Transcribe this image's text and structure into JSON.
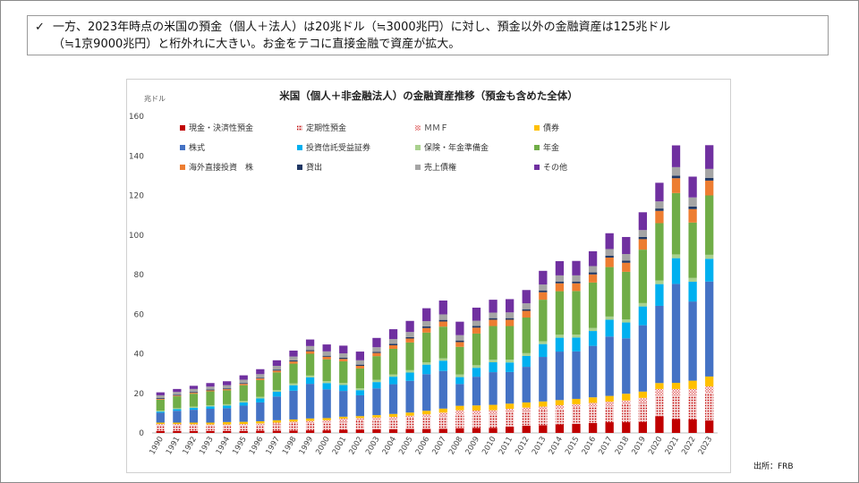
{
  "callout": {
    "check": "✓",
    "line1": "一方、2023年時点の米国の預金（個人＋法人）は20兆ドル（≒3000兆円）に対し、預金以外の金融資産は125兆ドル",
    "line2": "（≒1京9000兆円）と桁外れに大きい。お金をテコに直接金融で資産が拡大。"
  },
  "source": "出所：FRB",
  "chart_data": {
    "type": "bar",
    "stacked": true,
    "title": "米国（個人＋非金融法人）の金融資産推移（預金も含めた全体）",
    "ylabel": "兆ドル",
    "xlabel": "",
    "ylim": [
      0,
      160
    ],
    "yticks": [
      0,
      20,
      40,
      60,
      80,
      100,
      120,
      140,
      160
    ],
    "grid": false,
    "legend_position": "top-left (inside plot)",
    "categories": [
      "1990",
      "1991",
      "1992",
      "1993",
      "1994",
      "1995",
      "1996",
      "1997",
      "1998",
      "1999",
      "2000",
      "2001",
      "2002",
      "2003",
      "2004",
      "2005",
      "2006",
      "2007",
      "2008",
      "2009",
      "2010",
      "2011",
      "2012",
      "2013",
      "2014",
      "2015",
      "2016",
      "2017",
      "2018",
      "2019",
      "2020",
      "2021",
      "2022",
      "2023"
    ],
    "series": [
      {
        "name": "現金・決済性預金",
        "color": "#c00000",
        "pattern": "solid",
        "values": [
          1.0,
          1.0,
          1.0,
          1.0,
          1.0,
          1.0,
          1.1,
          1.1,
          1.2,
          1.3,
          1.3,
          1.6,
          1.7,
          1.8,
          1.9,
          2.0,
          2.0,
          2.1,
          2.4,
          2.5,
          2.6,
          3.2,
          3.6,
          3.9,
          4.3,
          4.6,
          5.0,
          5.4,
          5.4,
          5.6,
          8.5,
          7.0,
          6.8,
          6.3
        ]
      },
      {
        "name": "定期性預金",
        "color": "#e8b0b0",
        "pattern": "dots",
        "values": [
          3.0,
          3.0,
          2.9,
          2.8,
          2.8,
          2.9,
          3.0,
          3.2,
          3.4,
          3.6,
          3.8,
          4.0,
          4.3,
          4.6,
          4.9,
          5.3,
          5.8,
          6.2,
          6.7,
          6.8,
          7.0,
          7.2,
          7.4,
          7.6,
          7.8,
          8.0,
          8.2,
          8.3,
          8.7,
          9.5,
          10.5,
          12.0,
          12.3,
          13.8
        ]
      },
      {
        "name": "ＭＭＦ",
        "color": "#cc0000",
        "pattern": "hatch",
        "values": [
          0.5,
          0.5,
          0.5,
          0.5,
          0.5,
          0.6,
          0.7,
          0.9,
          1.1,
          1.2,
          1.3,
          1.6,
          1.5,
          1.4,
          1.3,
          1.4,
          1.6,
          2.0,
          2.4,
          2.0,
          1.9,
          1.8,
          1.8,
          1.8,
          1.9,
          1.9,
          2.0,
          2.1,
          2.3,
          2.6,
          3.2,
          3.2,
          3.1,
          3.4
        ]
      },
      {
        "name": "債券",
        "color": "#ffc000",
        "pattern": "solid",
        "values": [
          0.7,
          0.7,
          0.8,
          0.9,
          1.2,
          1.1,
          1.1,
          1.2,
          1.1,
          1.2,
          1.1,
          1.0,
          1.0,
          1.2,
          1.5,
          1.6,
          1.8,
          2.0,
          2.2,
          2.6,
          2.7,
          2.6,
          2.6,
          2.6,
          2.6,
          2.7,
          2.8,
          2.9,
          3.4,
          3.2,
          3.0,
          3.1,
          4.2,
          5.0
        ]
      },
      {
        "name": "株式",
        "color": "#4472c4",
        "pattern": "solid",
        "values": [
          5.0,
          6.0,
          6.5,
          7.0,
          7.0,
          8.2,
          9.5,
          12.0,
          14.5,
          17.5,
          14.5,
          13.0,
          10.5,
          13.5,
          15.0,
          16.0,
          18.5,
          19.0,
          11.0,
          14.5,
          16.5,
          16.0,
          18.0,
          22.5,
          24.5,
          24.0,
          26.0,
          30.0,
          28.0,
          33.5,
          39.0,
          50.0,
          40.0,
          48.0
        ]
      },
      {
        "name": "投資信託受益証券",
        "color": "#00b0f0",
        "pattern": "solid",
        "values": [
          0.6,
          0.8,
          1.0,
          1.2,
          1.3,
          1.6,
          2.0,
          2.4,
          2.8,
          3.3,
          3.2,
          3.0,
          2.6,
          3.2,
          3.8,
          4.2,
          4.8,
          5.2,
          3.5,
          4.5,
          5.0,
          4.8,
          5.5,
          6.5,
          7.0,
          7.0,
          7.5,
          8.5,
          8.0,
          9.5,
          11.0,
          13.0,
          10.0,
          11.5
        ]
      },
      {
        "name": "保険・年金準備金",
        "color": "#a9d18e",
        "pattern": "solid",
        "values": [
          0.5,
          0.5,
          0.6,
          0.6,
          0.7,
          0.7,
          0.8,
          0.8,
          0.9,
          0.9,
          1.0,
          1.0,
          1.0,
          1.1,
          1.1,
          1.2,
          1.2,
          1.2,
          1.3,
          1.3,
          1.3,
          1.4,
          1.4,
          1.4,
          1.5,
          1.5,
          1.5,
          1.6,
          1.6,
          1.7,
          1.8,
          1.9,
          1.9,
          2.0
        ]
      },
      {
        "name": "年金",
        "color": "#70ad47",
        "pattern": "solid",
        "values": [
          5.5,
          6.0,
          6.5,
          7.0,
          7.0,
          8.0,
          8.5,
          9.0,
          10.0,
          11.0,
          11.0,
          11.0,
          10.0,
          12.0,
          13.0,
          14.0,
          15.0,
          16.0,
          14.0,
          16.0,
          17.0,
          17.0,
          18.0,
          21.0,
          22.0,
          22.0,
          23.0,
          25.0,
          24.0,
          27.0,
          29.0,
          31.0,
          28.0,
          30.0
        ]
      },
      {
        "name": "海外直接投資　株",
        "color": "#ed7d31",
        "pattern": "solid",
        "values": [
          0.4,
          0.4,
          0.5,
          0.5,
          0.6,
          0.7,
          0.8,
          0.9,
          1.1,
          1.3,
          1.3,
          1.2,
          1.3,
          1.6,
          1.8,
          2.0,
          2.3,
          2.6,
          2.4,
          3.0,
          3.2,
          3.2,
          3.4,
          3.8,
          4.0,
          3.9,
          4.1,
          4.8,
          4.6,
          5.3,
          6.2,
          7.5,
          6.8,
          7.5
        ]
      },
      {
        "name": "貸出",
        "color": "#203864",
        "pattern": "solid",
        "values": [
          0.4,
          0.4,
          0.4,
          0.4,
          0.4,
          0.4,
          0.4,
          0.5,
          0.5,
          0.5,
          0.5,
          0.6,
          0.6,
          0.6,
          0.7,
          0.7,
          0.8,
          0.8,
          0.8,
          0.8,
          0.8,
          0.8,
          0.8,
          0.9,
          0.9,
          0.9,
          1.0,
          1.0,
          1.0,
          1.1,
          1.2,
          1.3,
          1.3,
          1.4
        ]
      },
      {
        "name": "売上債権",
        "color": "#a5a5a5",
        "pattern": "solid",
        "values": [
          1.4,
          1.4,
          1.5,
          1.5,
          1.6,
          1.7,
          1.8,
          1.9,
          2.0,
          2.1,
          2.2,
          2.2,
          2.2,
          2.3,
          2.4,
          2.6,
          2.7,
          2.8,
          2.7,
          2.7,
          2.8,
          2.9,
          3.0,
          3.0,
          3.1,
          3.1,
          3.2,
          3.3,
          3.4,
          3.5,
          3.6,
          4.3,
          4.6,
          4.5
        ]
      },
      {
        "name": "その他",
        "color": "#7030a0",
        "pattern": "solid",
        "values": [
          1.5,
          1.5,
          1.6,
          1.8,
          2.0,
          2.2,
          2.5,
          2.8,
          3.0,
          3.3,
          3.5,
          3.9,
          4.4,
          4.7,
          5.0,
          5.6,
          6.5,
          7.0,
          6.8,
          6.6,
          6.5,
          6.7,
          6.7,
          6.9,
          7.2,
          7.3,
          7.5,
          8.0,
          8.6,
          9.0,
          9.4,
          11.0,
          10.5,
          12.0
        ]
      }
    ]
  }
}
